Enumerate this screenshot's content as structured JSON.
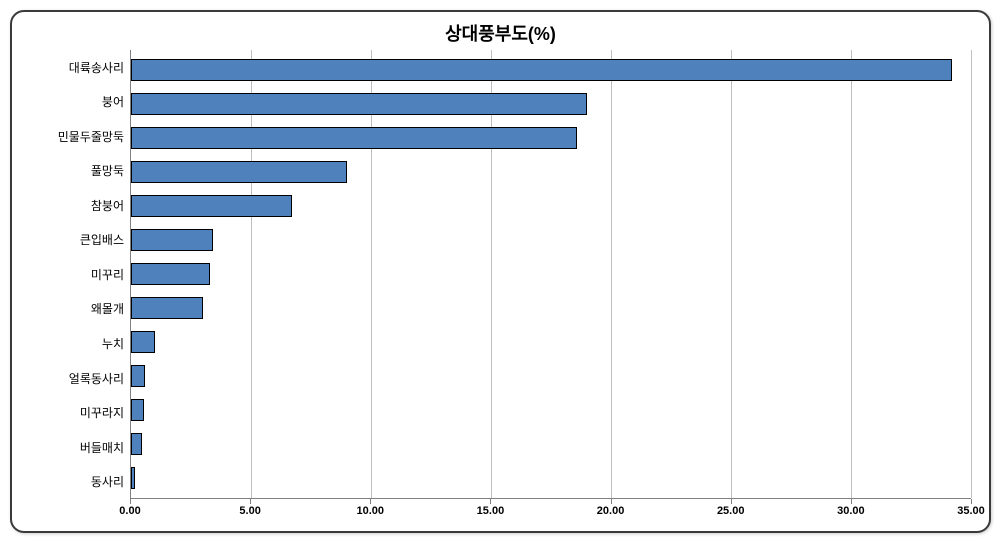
{
  "chart": {
    "type": "bar-horizontal",
    "title": "상대풍부도(%)",
    "title_fontsize": 18,
    "title_color": "#000000",
    "background_color": "#ffffff",
    "frame_border_color": "#3a3a3a",
    "grid_color": "#bfbfbf",
    "axis_color": "#808080",
    "bar_color": "#4f81bd",
    "bar_border_color": "#000000",
    "bar_width_ratio": 0.72,
    "xlim_min": 0,
    "xlim_max": 35,
    "xtick_step": 5,
    "xtick_labels": [
      "0.00",
      "5.00",
      "10.00",
      "15.00",
      "20.00",
      "25.00",
      "30.00",
      "35.00"
    ],
    "xtick_fontsize": 11,
    "xtick_fontweight": "bold",
    "xtick_color": "#000000",
    "ylabel_fontsize": 12,
    "ylabel_color": "#000000",
    "categories": [
      "대륙송사리",
      "붕어",
      "민물두줄망둑",
      "풀망둑",
      "참붕어",
      "큰입배스",
      "미꾸리",
      "왜몰개",
      "누치",
      "얼록동사리",
      "미꾸라지",
      "버들매치",
      "동사리"
    ],
    "values": [
      34.2,
      19.0,
      18.6,
      9.0,
      6.7,
      3.4,
      3.3,
      3.0,
      1.0,
      0.6,
      0.55,
      0.45,
      0.18
    ]
  }
}
